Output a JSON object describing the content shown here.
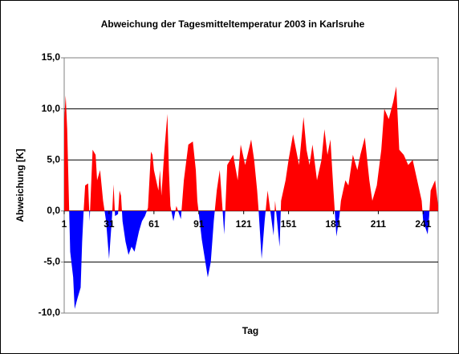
{
  "chart_data": {
    "type": "area",
    "title": "Abweichung der Tagesmitteltemperatur 2003 in Karlsruhe",
    "x_label": "Tag",
    "y_label": "Abweichung [K]",
    "color_positive": "#ff0000",
    "color_negative": "#0000ff",
    "grid": true,
    "xlim": [
      1,
      251
    ],
    "xticks": [
      1,
      31,
      61,
      91,
      121,
      151,
      181,
      211,
      241
    ],
    "ylim": [
      -10,
      15
    ],
    "yticks": [
      {
        "value": -10,
        "label": "-10,0"
      },
      {
        "value": -5,
        "label": "-5,0"
      },
      {
        "value": 0,
        "label": "0,0"
      },
      {
        "value": 5,
        "label": "5,0"
      },
      {
        "value": 10,
        "label": "10,0"
      },
      {
        "value": 15,
        "label": "15,0"
      }
    ],
    "x": [
      1,
      2,
      3,
      4,
      5,
      7,
      8,
      10,
      12,
      13,
      14,
      15,
      17,
      18,
      20,
      22,
      23,
      25,
      27,
      29,
      31,
      33,
      34,
      35,
      37,
      38,
      39,
      40,
      42,
      44,
      46,
      48,
      51,
      53,
      55,
      57,
      59,
      60,
      61,
      64,
      65,
      66,
      68,
      70,
      71,
      72,
      74,
      76,
      79,
      81,
      84,
      87,
      89,
      90,
      93,
      97,
      99,
      100,
      101,
      103,
      105,
      106,
      108,
      110,
      114,
      117,
      119,
      122,
      126,
      128,
      130,
      131,
      133,
      135,
      137,
      141,
      142,
      145,
      146,
      149,
      151,
      154,
      156,
      158,
      161,
      163,
      165,
      167,
      170,
      173,
      175,
      177,
      179,
      181,
      183,
      185,
      186,
      189,
      191,
      194,
      197,
      199,
      202,
      205,
      207,
      210,
      213,
      215,
      218,
      221,
      223,
      225,
      228,
      231,
      234,
      237,
      240,
      241,
      244,
      245,
      246,
      249,
      251
    ],
    "values": [
      9,
      11.3,
      8,
      2,
      -4,
      -6.5,
      -9.6,
      -8.5,
      -7.5,
      -3,
      0,
      2.5,
      2.7,
      -1,
      6,
      5.5,
      3,
      4,
      1,
      -1,
      -4.7,
      -0.5,
      2.6,
      -0.5,
      -0.3,
      2,
      1.5,
      -1,
      -3,
      -4.3,
      -3.5,
      -4,
      -2,
      -1,
      -0.5,
      0.3,
      5.8,
      5.5,
      4,
      2,
      4,
      1.5,
      6,
      9.5,
      4,
      0.5,
      -1,
      0.5,
      -0.8,
      3,
      6.5,
      6.8,
      4,
      1,
      -2.8,
      -6.5,
      -5,
      -3,
      -1,
      2,
      4,
      2,
      -2.3,
      4.5,
      5.5,
      3,
      6.5,
      4.5,
      7,
      5,
      2,
      0,
      -4.7,
      -1,
      2,
      -2.4,
      1,
      -3.5,
      1,
      3,
      5,
      7.5,
      6,
      4.5,
      9.2,
      6,
      4.5,
      6.5,
      3,
      5,
      8,
      5.5,
      7,
      2,
      -2.5,
      -0.5,
      1,
      3,
      2.5,
      5.5,
      4,
      5.5,
      7.2,
      3,
      1,
      2.5,
      6,
      10,
      9,
      10.7,
      12.2,
      6,
      5.5,
      4.5,
      5,
      3,
      1,
      -1,
      -2.3,
      -0.5,
      2,
      3,
      0.5
    ]
  }
}
